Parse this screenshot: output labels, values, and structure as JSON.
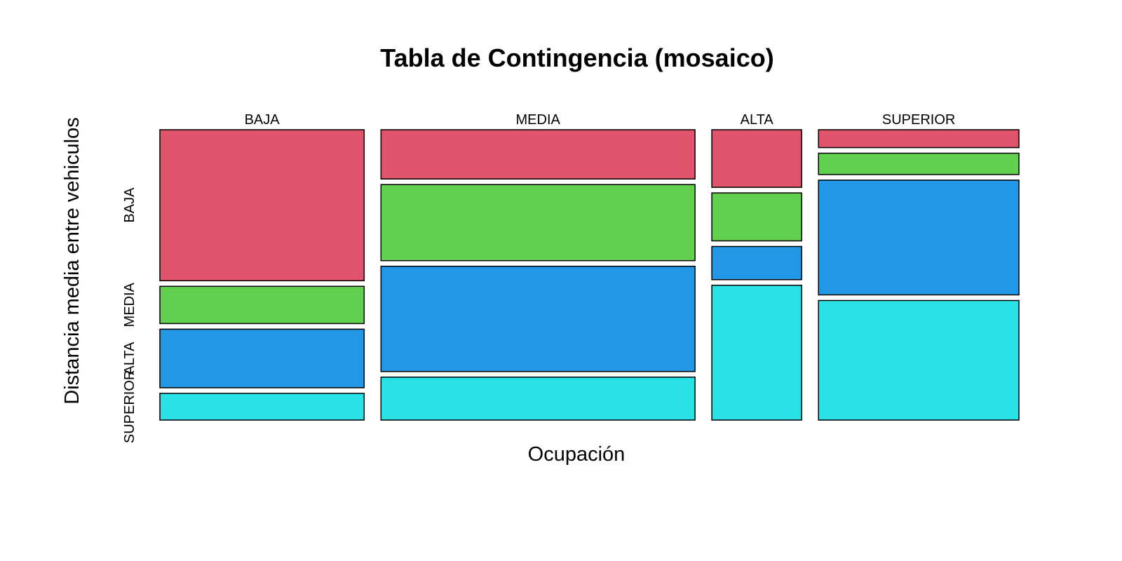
{
  "chart_data": {
    "type": "mosaic",
    "title": "Tabla de Contingencia (mosaico)",
    "xlabel": "Ocupación",
    "ylabel": "Distancia media entre vehiculos",
    "x_categories": [
      "BAJA",
      "MEDIA",
      "ALTA",
      "SUPERIOR"
    ],
    "y_categories": [
      "BAJA",
      "MEDIA",
      "ALTA",
      "SUPERIOR"
    ],
    "x_proportions": [
      0.266,
      0.409,
      0.117,
      0.261
    ],
    "conditional_proportions": [
      [
        0.531,
        0.131,
        0.206,
        0.094
      ],
      [
        0.172,
        0.266,
        0.368,
        0.15
      ],
      [
        0.203,
        0.169,
        0.117,
        0.475
      ],
      [
        0.063,
        0.075,
        0.404,
        0.421
      ]
    ],
    "colors": [
      "#DF536B",
      "#61D04F",
      "#2297E6",
      "#28E2E5"
    ],
    "grid": false,
    "legend": "none"
  }
}
